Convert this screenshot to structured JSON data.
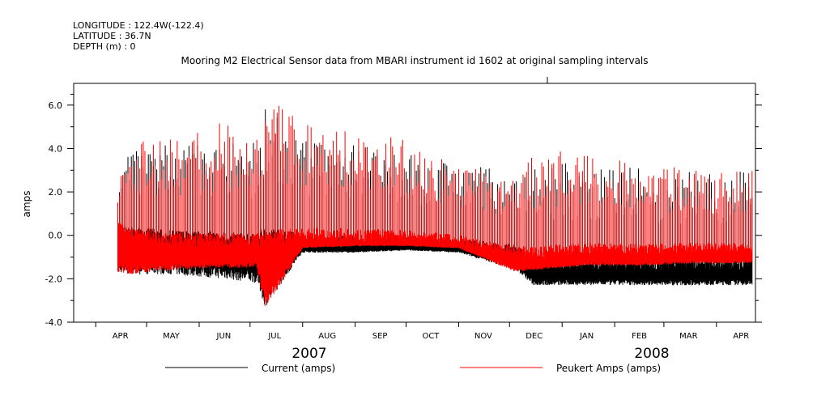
{
  "header": {
    "longitude": "LONGITUDE : 122.4W(-122.4)",
    "latitude": "LATITUDE : 36.7N",
    "depth": "DEPTH (m) : 0"
  },
  "colors": {
    "current": "#000000",
    "peukert": "#ff0000",
    "axis": "#000000"
  },
  "chart_data": {
    "type": "line",
    "title": "Mooring M2 Electrical Sensor data from MBARI instrument id 1602 at original sampling intervals",
    "ylabel": "amps",
    "xlabel": "",
    "ylim": [
      -4.0,
      7.0
    ],
    "yticks": [
      -4.0,
      -2.0,
      0.0,
      2.0,
      4.0,
      6.0
    ],
    "ytick_labels": [
      "-4.0",
      "-2.0",
      "0.0",
      "2.0",
      "4.0",
      "6.0"
    ],
    "xlim": [
      "2007-03-19",
      "2008-04-24"
    ],
    "month_labels": [
      "APR",
      "MAY",
      "JUN",
      "JUL",
      "AUG",
      "SEP",
      "OCT",
      "NOV",
      "DEC",
      "JAN",
      "FEB",
      "MAR",
      "APR"
    ],
    "month_label_dates": [
      "2007-04-01",
      "2007-05-01",
      "2007-06-01",
      "2007-07-01",
      "2007-08-01",
      "2007-09-01",
      "2007-10-01",
      "2007-11-01",
      "2007-12-01",
      "2008-01-01",
      "2008-02-01",
      "2008-03-01",
      "2008-04-01"
    ],
    "year_labels": [
      "2007",
      "2008"
    ],
    "legend_position": "bottom",
    "series": [
      {
        "name": "Current (amps)",
        "color": "#000000",
        "envelope": {
          "dates": [
            "2007-04-14",
            "2007-04-20",
            "2007-05-15",
            "2007-06-15",
            "2007-07-05",
            "2007-07-10",
            "2007-08-01",
            "2007-09-01",
            "2007-10-01",
            "2007-11-01",
            "2007-12-05",
            "2007-12-15",
            "2008-01-15",
            "2008-02-15",
            "2008-03-15",
            "2008-04-15"
          ],
          "max": [
            2.0,
            3.8,
            4.2,
            4.3,
            4.3,
            6.2,
            4.5,
            4.2,
            3.8,
            3.2,
            3.1,
            3.6,
            3.3,
            3.1,
            3.0,
            3.1
          ],
          "min": [
            -1.7,
            -1.8,
            -1.8,
            -2.0,
            -2.2,
            -3.3,
            -0.8,
            -0.8,
            -0.7,
            -0.8,
            -1.6,
            -2.3,
            -2.3,
            -2.3,
            -2.3,
            -2.3
          ],
          "base": [
            0.0,
            0.0,
            -0.3,
            -0.4,
            -0.5,
            -0.4,
            -0.5,
            -0.6,
            -0.5,
            -0.6,
            -0.9,
            -1.6,
            -1.6,
            -1.6,
            -1.6,
            -1.6
          ]
        }
      },
      {
        "name": "Peukert Amps (amps)",
        "color": "#ff0000",
        "envelope": {
          "dates": [
            "2007-04-14",
            "2007-04-20",
            "2007-05-15",
            "2007-06-15",
            "2007-07-05",
            "2007-07-10",
            "2007-08-01",
            "2007-09-01",
            "2007-10-01",
            "2007-11-01",
            "2007-12-05",
            "2007-12-15",
            "2008-01-15",
            "2008-02-15",
            "2008-03-15",
            "2008-04-15"
          ],
          "max": [
            2.0,
            4.5,
            4.5,
            5.2,
            4.5,
            6.4,
            5.2,
            4.9,
            4.4,
            3.1,
            3.2,
            4.0,
            3.8,
            3.4,
            3.2,
            3.0
          ],
          "min": [
            -1.7,
            -1.8,
            -1.6,
            -1.5,
            -1.5,
            -3.4,
            -0.6,
            -0.5,
            -0.5,
            -0.6,
            -1.7,
            -1.6,
            -1.4,
            -1.4,
            -1.3,
            -1.3
          ],
          "base": [
            0.5,
            -0.2,
            -0.5,
            -0.6,
            -0.5,
            -0.5,
            -0.3,
            -0.3,
            -0.3,
            -0.4,
            -1.0,
            -1.1,
            -0.9,
            -0.9,
            -0.8,
            -0.8
          ]
        }
      }
    ]
  }
}
